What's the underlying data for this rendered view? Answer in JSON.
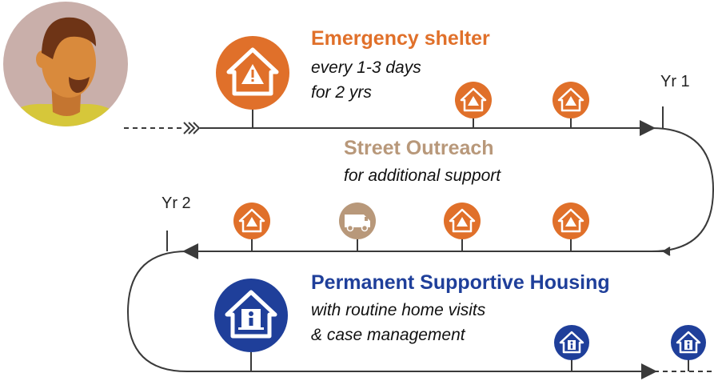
{
  "colors": {
    "shelter": "#E0702A",
    "outreach": "#B8987A",
    "housing": "#1F3F9A",
    "line": "#3a3a3a",
    "avatar_bg": "#C9AFAA",
    "skin": "#D98A3C",
    "hair": "#6E3416",
    "shirt": "#D6C73A"
  },
  "emergency": {
    "title": "Emergency shelter",
    "line1": "every 1-3 days",
    "line2": "for 2 yrs"
  },
  "outreach": {
    "title": "Street Outreach",
    "line1": "for additional support"
  },
  "housing": {
    "title": "Permanent Supportive Housing",
    "line1": "with routine home visits",
    "line2": "& case management"
  },
  "markers": {
    "yr1": "Yr 1",
    "yr2": "Yr 2"
  },
  "icons": {
    "person": "person-avatar",
    "shelter": "house-warning-icon",
    "outreach": "outreach-van-icon",
    "housing": "house-person-icon"
  }
}
